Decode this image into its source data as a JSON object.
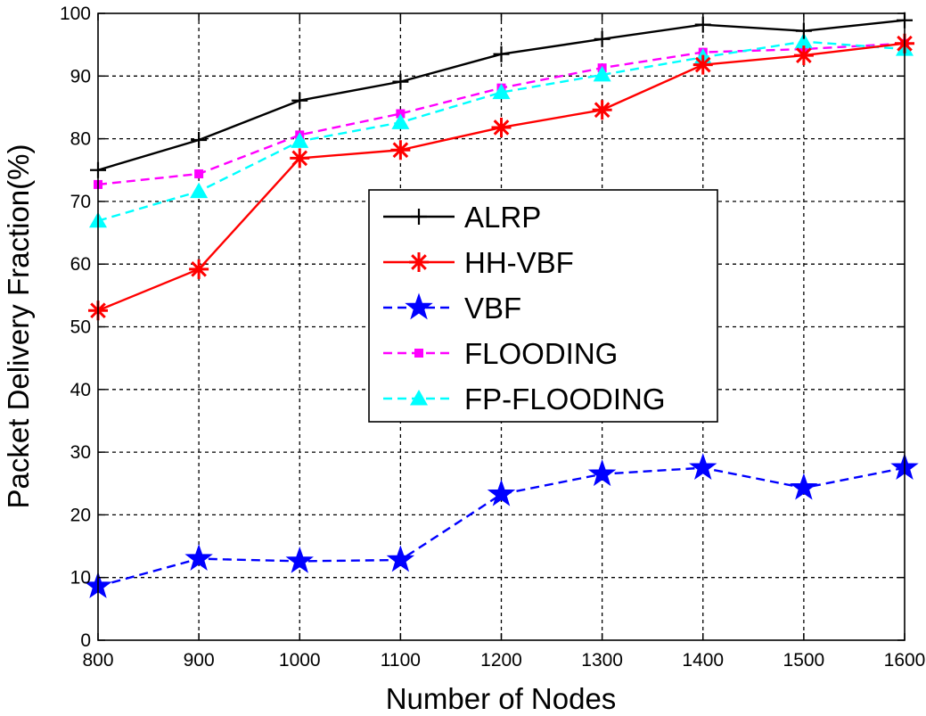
{
  "chart_data": {
    "type": "line",
    "title": "",
    "xlabel": "Number of Nodes",
    "ylabel": "Packet Delivery Fraction(%)",
    "x": [
      800,
      900,
      1000,
      1100,
      1200,
      1300,
      1400,
      1500,
      1600
    ],
    "xlim": [
      800,
      1600
    ],
    "ylim": [
      0,
      100
    ],
    "xticks": [
      "800",
      "900",
      "1000",
      "1100",
      "1200",
      "1300",
      "1400",
      "1500",
      "1600"
    ],
    "yticks": [
      "0",
      "10",
      "20",
      "30",
      "40",
      "50",
      "60",
      "70",
      "80",
      "90",
      "100"
    ],
    "grid": true,
    "legend_position": "center",
    "series": [
      {
        "name": "ALRP",
        "color": "#000000",
        "dash": "solid",
        "marker": "plus",
        "values": [
          75,
          79.8,
          86.1,
          89.1,
          93.5,
          95.9,
          98.2,
          97.2,
          98.9
        ]
      },
      {
        "name": "HH-VBF",
        "color": "#ff0000",
        "dash": "solid",
        "marker": "asterisk",
        "values": [
          52.6,
          59.2,
          76.9,
          78.2,
          81.8,
          84.6,
          91.8,
          93.3,
          95.2
        ]
      },
      {
        "name": "VBF",
        "color": "#0000ff",
        "dash": "dashed",
        "marker": "star",
        "values": [
          8.6,
          13,
          12.6,
          12.8,
          23.3,
          26.5,
          27.5,
          24.3,
          27.5
        ]
      },
      {
        "name": "FLOODING",
        "color": "#ff00ff",
        "dash": "dashed",
        "marker": "square",
        "values": [
          72.7,
          74.4,
          80.6,
          84,
          88.1,
          91.3,
          93.8,
          94.3,
          95.2
        ]
      },
      {
        "name": "FP-FLOODING",
        "color": "#00ffff",
        "dash": "dashed",
        "marker": "triangle",
        "values": [
          66.9,
          71.6,
          79.6,
          82.6,
          87.4,
          90.2,
          93,
          95.5,
          94.3
        ]
      }
    ]
  }
}
